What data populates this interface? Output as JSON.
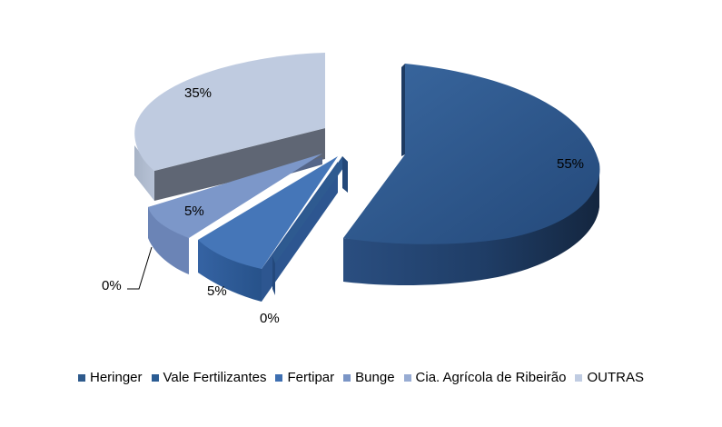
{
  "chart_data": {
    "type": "pie",
    "title": "",
    "categories": [
      "Heringer",
      "Vale Fertilizantes",
      "Fertipar",
      "Bunge",
      "Cia. Agrícola de Ribeirão",
      "OUTRAS"
    ],
    "values": [
      55,
      0,
      5,
      5,
      0,
      35
    ],
    "data_labels": [
      "55%",
      "0%",
      "5%",
      "5%",
      "0%",
      "35%"
    ],
    "colors": [
      "#2E5A8C",
      "#2B5C93",
      "#3E6FB1",
      "#7A95C6",
      "#98ACD3",
      "#C0CCE2"
    ],
    "legend_position": "bottom",
    "style": "3d exploded"
  }
}
